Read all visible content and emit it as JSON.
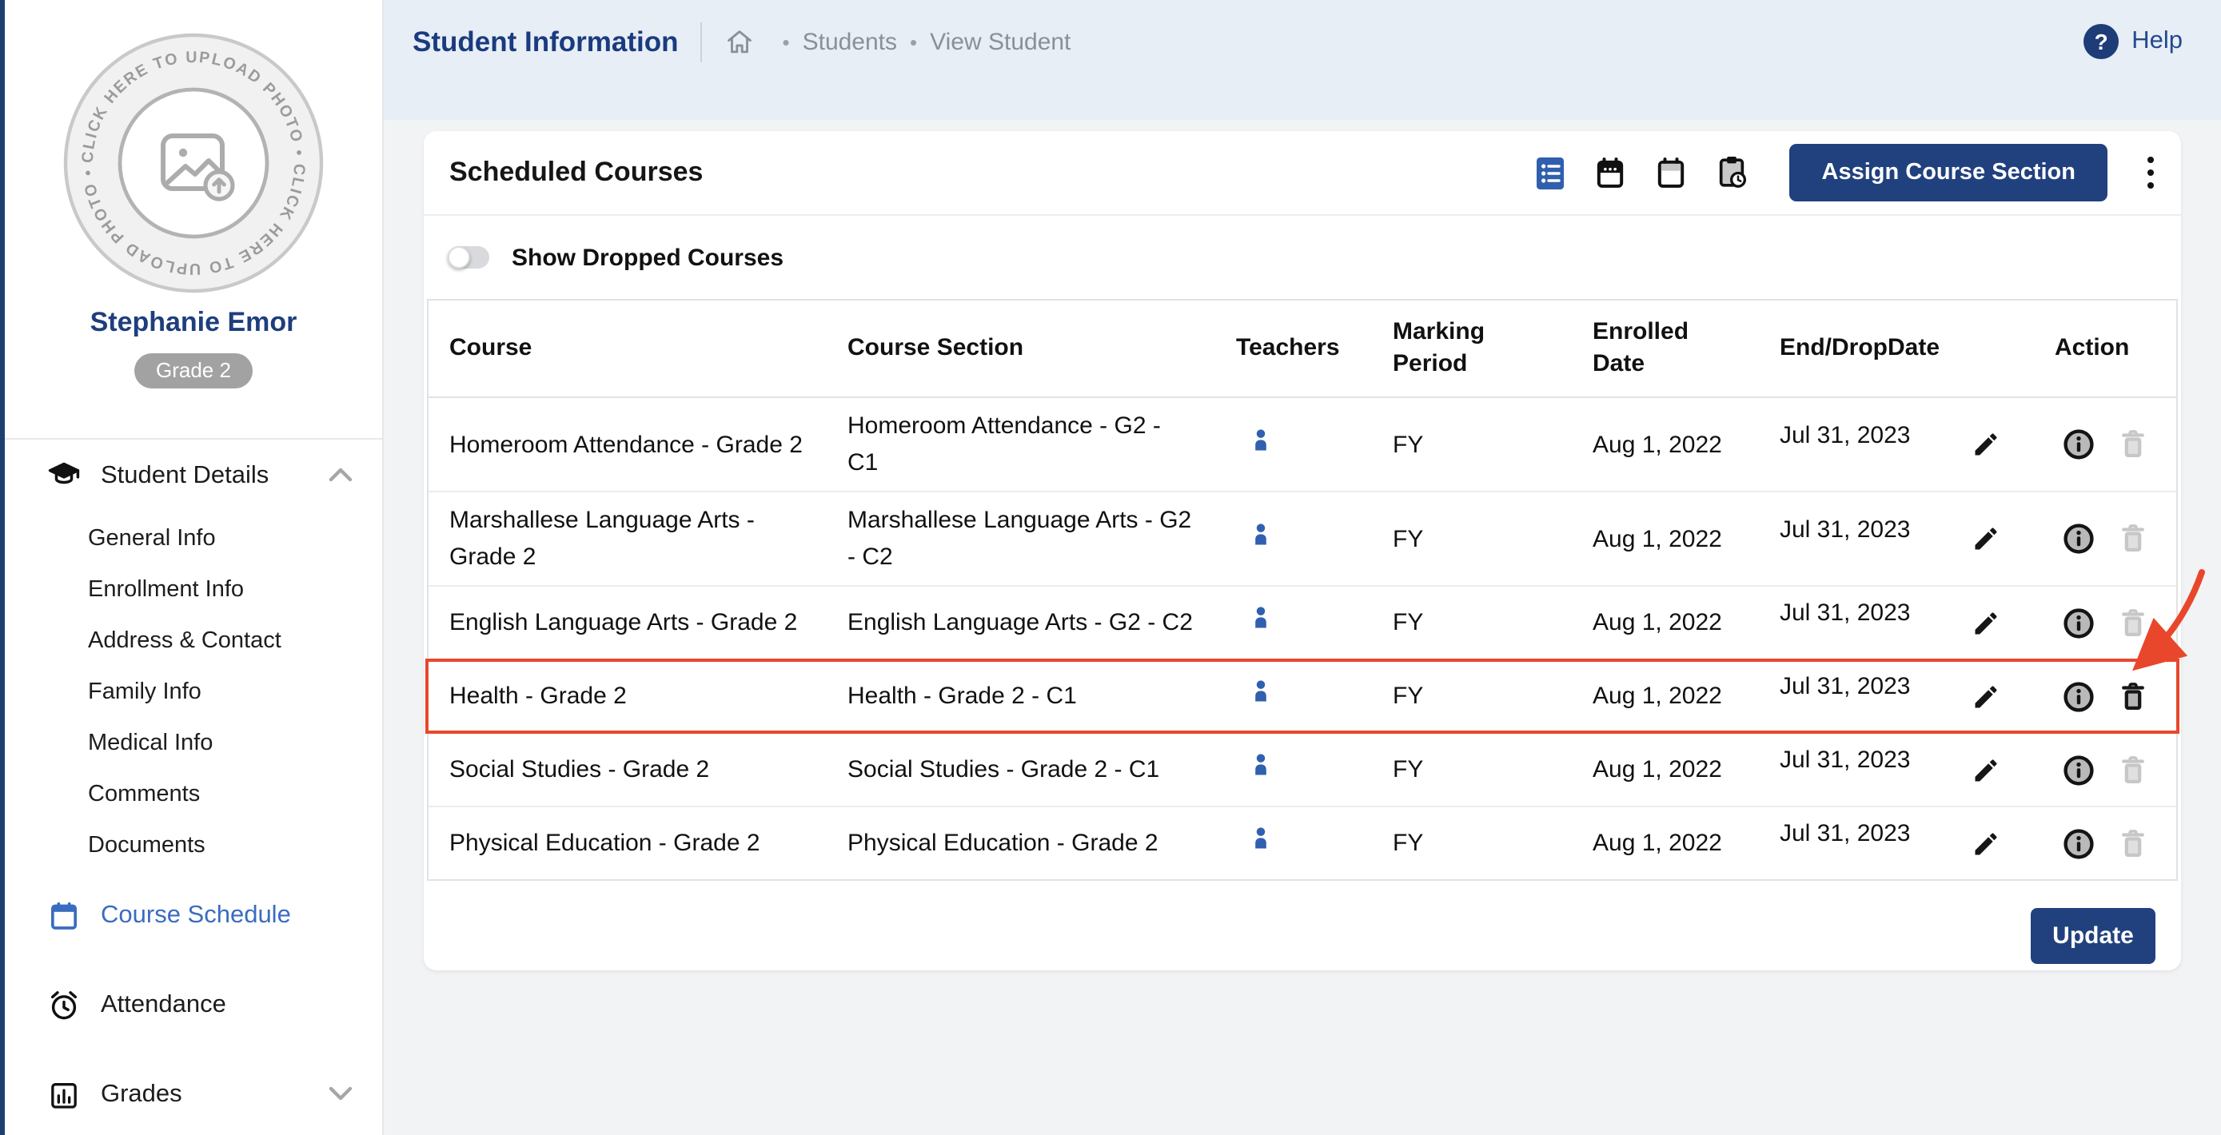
{
  "topbar": {
    "title": "Student Information",
    "breadcrumb": {
      "items": [
        "Students",
        "View Student"
      ]
    },
    "help_label": "Help"
  },
  "sidebar": {
    "photo_circle_text": "CLICK HERE TO UPLOAD PHOTO  •  CLICK HERE TO UPLOAD PHOTO  •",
    "student_name": "Stephanie Emor",
    "grade_badge": "Grade 2",
    "sections": [
      {
        "label": "Student Details",
        "icon": "graduation-cap-icon",
        "state": "expanded",
        "items": [
          "General Info",
          "Enrollment Info",
          "Address & Contact",
          "Family Info",
          "Medical Info",
          "Comments",
          "Documents"
        ]
      },
      {
        "label": "Course Schedule",
        "icon": "calendar-icon",
        "state": "active"
      },
      {
        "label": "Attendance",
        "icon": "alarm-clock-icon",
        "state": "normal"
      },
      {
        "label": "Grades",
        "icon": "bar-chart-icon",
        "state": "collapsed"
      }
    ]
  },
  "card": {
    "title": "Scheduled Courses",
    "toolbar": {
      "icons": [
        "list-view-icon",
        "calendar-dots-icon",
        "calendar-month-icon",
        "clipboard-clock-icon"
      ],
      "assign_button_label": "Assign Course Section",
      "menu_icon": "kebab-menu-icon"
    },
    "toggle_label": "Show Dropped Courses",
    "update_button_label": "Update",
    "table": {
      "headers": [
        "Course",
        "Course Section",
        "Teachers",
        "Marking Period",
        "Enrolled Date",
        "End/DropDate",
        "Action"
      ],
      "rows": [
        {
          "course": "Homeroom Attendance - Grade 2",
          "course_section": "Homeroom Attendance - G2 - C1",
          "marking_period": "FY",
          "enrolled_date": "Aug 1, 2022",
          "end_drop_date": "Jul 31, 2023",
          "highlighted": false
        },
        {
          "course": "Marshallese Language Arts - Grade 2",
          "course_section": "Marshallese Language Arts - G2 - C2",
          "marking_period": "FY",
          "enrolled_date": "Aug 1, 2022",
          "end_drop_date": "Jul 31, 2023",
          "highlighted": false
        },
        {
          "course": "English Language Arts - Grade 2",
          "course_section": "English Language Arts - G2 - C2",
          "marking_period": "FY",
          "enrolled_date": "Aug 1, 2022",
          "end_drop_date": "Jul 31, 2023",
          "highlighted": false
        },
        {
          "course": "Health - Grade 2",
          "course_section": "Health - Grade 2 - C1",
          "marking_period": "FY",
          "enrolled_date": "Aug 1, 2022",
          "end_drop_date": "Jul 31, 2023",
          "highlighted": true
        },
        {
          "course": "Social Studies - Grade 2",
          "course_section": "Social Studies - Grade 2 - C1",
          "marking_period": "FY",
          "enrolled_date": "Aug 1, 2022",
          "end_drop_date": "Jul 31, 2023",
          "highlighted": false
        },
        {
          "course": "Physical Education - Grade 2",
          "course_section": "Physical Education - Grade 2",
          "marking_period": "FY",
          "enrolled_date": "Aug 1, 2022",
          "end_drop_date": "Jul 31, 2023",
          "highlighted": false
        }
      ]
    }
  },
  "colors": {
    "navy": "#1e3e7d",
    "active_blue": "#3a6cc0",
    "highlight_red": "#e8472b",
    "person_blue": "#3060af",
    "topbar_bg": "#e7eef6"
  }
}
